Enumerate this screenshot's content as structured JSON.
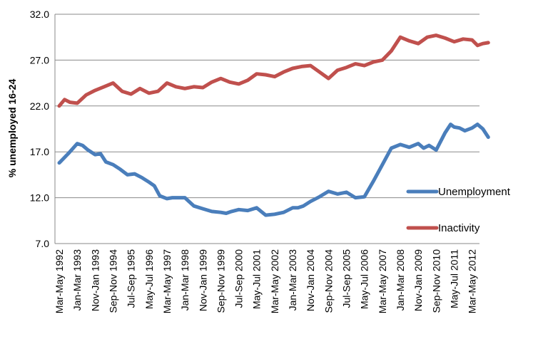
{
  "chart_data": {
    "type": "line",
    "title": "",
    "xlabel": "",
    "ylabel": "% unemployed 16-24",
    "ylim": [
      7.0,
      32.0
    ],
    "y_ticks": [
      "7.0",
      "12.0",
      "17.0",
      "22.0",
      "27.0",
      "32.0"
    ],
    "grid": "horizontal",
    "legend_placement": "right",
    "categories": [
      "Mar-May 1992",
      "Jan-Mar 1993",
      "Nov-Jan 1993",
      "Sep-Nov 1994",
      "Jul-Sep 1995",
      "May-Jul 1996",
      "Mar-May 1997",
      "Jan-Mar 1998",
      "Nov-Jan 1999",
      "Sep-Nov 1999",
      "Jul-Sep 2000",
      "May-Jul 2001",
      "Mar-May 2002",
      "Jan-Mar 2003",
      "Nov-Jan 2004",
      "Sep-Nov 2004",
      "Jul-Sep 2005",
      "May-Jul 2006",
      "Mar-May 2007",
      "Jan-Mar 2008",
      "Nov-Jan 2009",
      "Sep-Nov 2010",
      "May-Jul 2011",
      "Mar-May 2012"
    ],
    "series": [
      {
        "name": "Unemployment",
        "color": "#4a7ebb",
        "x": [
          0,
          0.5,
          1,
          1.3,
          1.6,
          2,
          2.3,
          2.6,
          3,
          3.4,
          3.8,
          4.2,
          4.6,
          5,
          5.3,
          5.6,
          6,
          6.3,
          6.6,
          7,
          7.5,
          8,
          8.5,
          9,
          9.3,
          9.6,
          10,
          10.5,
          11,
          11.5,
          12,
          12.5,
          13,
          13.3,
          13.6,
          14,
          14.5,
          15,
          15.5,
          16,
          16.5,
          17,
          17.5,
          18,
          18.5,
          19,
          19.5,
          20,
          20.3,
          20.6,
          21,
          21.5,
          21.8,
          22,
          22.3,
          22.6,
          23,
          23.3,
          23.6,
          23.9
        ],
        "values": [
          15.8,
          16.8,
          17.9,
          17.7,
          17.2,
          16.7,
          16.8,
          15.9,
          15.6,
          15.1,
          14.5,
          14.6,
          14.2,
          13.7,
          13.3,
          12.2,
          11.9,
          12.0,
          12.0,
          12.0,
          11.1,
          10.8,
          10.5,
          10.4,
          10.3,
          10.5,
          10.7,
          10.6,
          10.9,
          10.1,
          10.2,
          10.4,
          10.9,
          10.9,
          11.1,
          11.6,
          12.1,
          12.7,
          12.4,
          12.6,
          12.0,
          12.1,
          13.8,
          15.6,
          17.4,
          17.8,
          17.5,
          17.9,
          17.4,
          17.7,
          17.2,
          19.1,
          20.0,
          19.7,
          19.6,
          19.3,
          19.6,
          20.0,
          19.5,
          18.6
        ]
      },
      {
        "name": "Inactivity",
        "color": "#c0504d",
        "x": [
          0,
          0.3,
          0.6,
          1,
          1.5,
          2,
          2.5,
          3,
          3.5,
          4,
          4.5,
          5,
          5.5,
          6,
          6.5,
          7,
          7.5,
          8,
          8.5,
          9,
          9.5,
          10,
          10.5,
          11,
          11.5,
          12,
          12.5,
          13,
          13.5,
          14,
          14.5,
          15,
          15.5,
          16,
          16.5,
          17,
          17.5,
          18,
          18.5,
          19,
          19.5,
          20,
          20.5,
          21,
          21.5,
          22,
          22.5,
          23,
          23.3,
          23.6,
          23.9
        ],
        "values": [
          22.0,
          22.7,
          22.4,
          22.3,
          23.2,
          23.7,
          24.1,
          24.5,
          23.6,
          23.3,
          23.9,
          23.4,
          23.6,
          24.5,
          24.1,
          23.9,
          24.1,
          24.0,
          24.6,
          25.0,
          24.6,
          24.4,
          24.8,
          25.5,
          25.4,
          25.2,
          25.7,
          26.1,
          26.3,
          26.4,
          25.7,
          25.0,
          25.9,
          26.2,
          26.6,
          26.4,
          26.8,
          27.0,
          28.0,
          29.5,
          29.1,
          28.8,
          29.5,
          29.7,
          29.4,
          29.0,
          29.3,
          29.2,
          28.6,
          28.8,
          28.9
        ]
      }
    ]
  }
}
